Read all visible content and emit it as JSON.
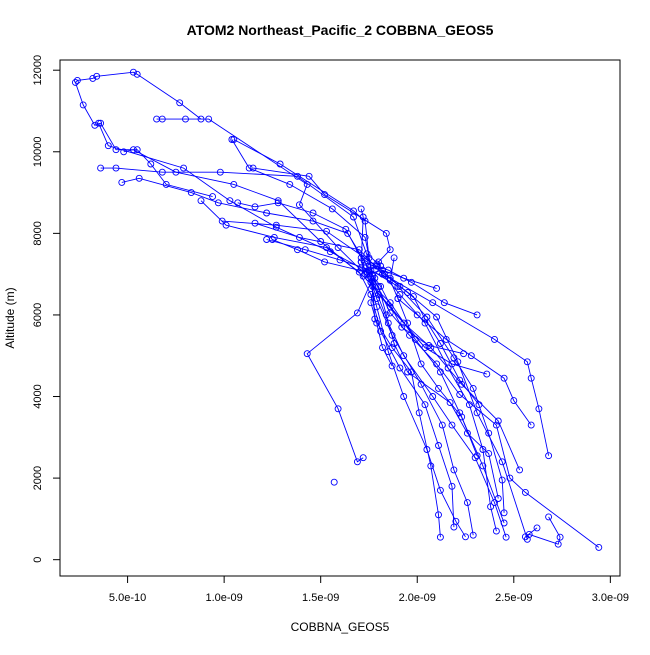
{
  "chart_data": {
    "type": "line",
    "title": "ATOM2 Northeast_Pacific_2 COBBNA_GEOS5",
    "xlabel": "COBBNA_GEOS5",
    "ylabel": "Altitude (m)",
    "xlim": [
      1.5e-10,
      3.05e-09
    ],
    "ylim": [
      -400,
      12250
    ],
    "xticks": [
      5e-10,
      1e-09,
      1.5e-09,
      2e-09,
      2.5e-09,
      3e-09
    ],
    "xtick_labels": [
      "5.0e-10",
      "1.0e-09",
      "1.5e-09",
      "2.0e-09",
      "2.5e-09",
      "3.0e-09"
    ],
    "yticks": [
      0,
      2000,
      4000,
      6000,
      8000,
      10000,
      12000
    ],
    "ytick_labels": [
      "0",
      "2000",
      "4000",
      "6000",
      "8000",
      "10000",
      "12000"
    ],
    "grid": false,
    "color": "#0000ff",
    "marker": "open-circle",
    "series": [
      {
        "points": [
          [
            2.68e-09,
            1050
          ],
          [
            2.74e-09,
            550
          ],
          [
            2.73e-09,
            380
          ],
          [
            2.58e-09,
            620
          ],
          [
            2.56e-09,
            560
          ],
          [
            2.62e-09,
            780
          ]
        ]
      },
      {
        "points": [
          [
            2.94e-09,
            300
          ],
          [
            2.56e-09,
            1650
          ],
          [
            2.48e-09,
            2000
          ],
          [
            2.41e-09,
            3300
          ],
          [
            2.22e-09,
            4050
          ],
          [
            2.1e-09,
            4800
          ],
          [
            1.96e-09,
            5500
          ],
          [
            1.86e-09,
            6050
          ],
          [
            1.77e-09,
            6950
          ],
          [
            1.73e-09,
            7900
          ],
          [
            1.56e-09,
            8600
          ],
          [
            1.34e-09,
            9200
          ],
          [
            1.13e-09,
            9600
          ],
          [
            1.04e-09,
            10300
          ]
        ]
      },
      {
        "points": [
          [
            2.68e-09,
            2550
          ],
          [
            2.63e-09,
            3700
          ],
          [
            2.59e-09,
            4450
          ],
          [
            2.57e-09,
            4850
          ],
          [
            2.4e-09,
            5400
          ],
          [
            2.08e-09,
            6300
          ],
          [
            1.86e-09,
            6900
          ],
          [
            1.71e-09,
            7150
          ],
          [
            1.55e-09,
            7550
          ],
          [
            1.27e-09,
            8150
          ],
          [
            1.03e-09,
            8800
          ],
          [
            7.9e-10,
            9600
          ],
          [
            4e-10,
            10150
          ],
          [
            3.5e-10,
            10700
          ]
        ]
      },
      {
        "points": [
          [
            2.53e-09,
            2200
          ],
          [
            2.42e-09,
            3400
          ],
          [
            2.23e-09,
            4300
          ],
          [
            2.07e-09,
            5200
          ],
          [
            1.93e-09,
            5800
          ],
          [
            1.8e-09,
            6500
          ],
          [
            1.73e-09,
            7000
          ],
          [
            1.59e-09,
            7650
          ],
          [
            1.39e-09,
            8700
          ],
          [
            1.43e-09,
            9200
          ],
          [
            9.2e-10,
            10800
          ],
          [
            8e-10,
            10800
          ],
          [
            6.8e-10,
            10800
          ],
          [
            6.5e-10,
            10800
          ]
        ]
      },
      {
        "points": [
          [
            2.45e-09,
            900
          ],
          [
            2.34e-09,
            2300
          ],
          [
            2.22e-09,
            3600
          ],
          [
            2.12e-09,
            4600
          ],
          [
            1.99e-09,
            5400
          ],
          [
            1.86e-09,
            6300
          ],
          [
            1.72e-09,
            6950
          ],
          [
            1.5e-09,
            7800
          ],
          [
            1.28e-09,
            8800
          ],
          [
            1.05e-09,
            9200
          ],
          [
            7.5e-10,
            9500
          ],
          [
            5.3e-10,
            10050
          ],
          [
            4.8e-10,
            10000
          ]
        ]
      },
      {
        "points": [
          [
            2.12e-09,
            550
          ],
          [
            2.11e-09,
            1100
          ],
          [
            2.07e-09,
            2300
          ],
          [
            2.01e-09,
            3600
          ],
          [
            1.97e-09,
            4600
          ],
          [
            1.87e-09,
            5200
          ],
          [
            1.78e-09,
            5900
          ],
          [
            1.76e-09,
            7200
          ],
          [
            1.67e-09,
            8400
          ],
          [
            1.38e-09,
            9400
          ],
          [
            9.8e-10,
            9500
          ],
          [
            6.8e-10,
            9500
          ],
          [
            4.4e-10,
            9600
          ],
          [
            3.6e-10,
            9600
          ]
        ]
      },
      {
        "points": [
          [
            2.29e-09,
            600
          ],
          [
            2.26e-09,
            1400
          ],
          [
            2.19e-09,
            2200
          ],
          [
            2.13e-09,
            3300
          ],
          [
            2.02e-09,
            4300
          ],
          [
            1.87e-09,
            5500
          ],
          [
            1.79e-09,
            6400
          ],
          [
            1.73e-09,
            7300
          ],
          [
            1.64e-09,
            8000
          ],
          [
            1.46e-09,
            8300
          ],
          [
            1.22e-09,
            8500
          ],
          [
            9.7e-10,
            8750
          ],
          [
            8.3e-10,
            9000
          ],
          [
            5.6e-10,
            9350
          ],
          [
            4.7e-10,
            9250
          ]
        ]
      },
      {
        "points": [
          [
            2.19e-09,
            800
          ],
          [
            2.18e-09,
            1800
          ],
          [
            2.11e-09,
            2800
          ],
          [
            2.04e-09,
            3800
          ],
          [
            1.91e-09,
            4700
          ],
          [
            1.81e-09,
            5600
          ],
          [
            1.76e-09,
            6500
          ],
          [
            1.7e-09,
            7050
          ],
          [
            1.53e-09,
            7650
          ],
          [
            1.26e-09,
            7900
          ],
          [
            1.01e-09,
            8200
          ],
          [
            8.8e-10,
            8800
          ]
        ]
      },
      {
        "points": [
          [
            2.41e-09,
            700
          ],
          [
            2.38e-09,
            1300
          ],
          [
            2.34e-09,
            2700
          ],
          [
            2.27e-09,
            3800
          ],
          [
            2.16e-09,
            4700
          ],
          [
            2.04e-09,
            5800
          ],
          [
            1.91e-09,
            6500
          ],
          [
            1.82e-09,
            7000
          ],
          [
            1.7e-09,
            7600
          ],
          [
            1.39e-09,
            7900
          ],
          [
            1.16e-09,
            8250
          ]
        ]
      },
      {
        "points": [
          [
            2.45e-09,
            1150
          ],
          [
            2.44e-09,
            1950
          ],
          [
            2.37e-09,
            3100
          ],
          [
            2.29e-09,
            4200
          ],
          [
            2.19e-09,
            4950
          ],
          [
            2.05e-09,
            5950
          ],
          [
            1.9e-09,
            6700
          ],
          [
            1.76e-09,
            7100
          ],
          [
            1.6e-09,
            7350
          ],
          [
            1.42e-09,
            7600
          ],
          [
            1.22e-09,
            7850
          ]
        ]
      },
      {
        "points": [
          [
            2.57e-09,
            500
          ],
          [
            2.44e-09,
            2400
          ],
          [
            2.31e-09,
            3600
          ],
          [
            2.21e-09,
            4850
          ],
          [
            2.1e-09,
            5950
          ],
          [
            1.95e-09,
            6550
          ],
          [
            1.83e-09,
            7000
          ],
          [
            1.71e-09,
            7400
          ],
          [
            1.63e-09,
            8100
          ],
          [
            1.46e-09,
            8500
          ],
          [
            1.28e-09,
            8750
          ],
          [
            1.16e-09,
            8650
          ],
          [
            1.07e-09,
            8750
          ]
        ]
      },
      {
        "points": [
          [
            2.46e-09,
            550
          ],
          [
            2.4e-09,
            1400
          ],
          [
            2.3e-09,
            2500
          ],
          [
            2.18e-09,
            3300
          ],
          [
            2.08e-09,
            4000
          ],
          [
            1.93e-09,
            5000
          ],
          [
            1.85e-09,
            5800
          ],
          [
            1.77e-09,
            6800
          ],
          [
            1.75e-09,
            7400
          ],
          [
            1.73e-09,
            8300
          ],
          [
            1.67e-09,
            8550
          ],
          [
            1.29e-09,
            9700
          ],
          [
            1.05e-09,
            10300
          ]
        ]
      },
      {
        "points": [
          [
            2.42e-09,
            1500
          ],
          [
            2.37e-09,
            2600
          ],
          [
            2.26e-09,
            3100
          ],
          [
            2.17e-09,
            3850
          ],
          [
            1.95e-09,
            4600
          ],
          [
            1.88e-09,
            5300
          ],
          [
            1.84e-09,
            6000
          ],
          [
            1.8e-09,
            6700
          ],
          [
            1.74e-09,
            7050
          ],
          [
            1.52e-09,
            7300
          ],
          [
            1.38e-09,
            7600
          ],
          [
            1.25e-09,
            7850
          ]
        ]
      },
      {
        "points": [
          [
            2.32e-09,
            3800
          ],
          [
            2.22e-09,
            4400
          ],
          [
            2.12e-09,
            5300
          ],
          [
            2.04e-09,
            5900
          ],
          [
            1.98e-09,
            6450
          ],
          [
            1.91e-09,
            6700
          ],
          [
            1.79e-09,
            7200
          ],
          [
            1.53e-09,
            8050
          ],
          [
            1.27e-09,
            8200
          ],
          [
            9.9e-10,
            8300
          ]
        ]
      },
      {
        "points": [
          [
            1.72e-09,
            2500
          ],
          [
            1.69e-09,
            2400
          ],
          [
            1.59e-09,
            3700
          ],
          [
            1.43e-09,
            5050
          ],
          [
            1.69e-09,
            6050
          ],
          [
            1.76e-09,
            6800
          ],
          [
            1.81e-09,
            7200
          ],
          [
            1.74e-09,
            7500
          ]
        ]
      },
      {
        "points": [
          [
            1.57e-09,
            1900
          ]
        ]
      },
      {
        "points": [
          [
            1.15e-09,
            9600
          ],
          [
            1.44e-09,
            9400
          ],
          [
            1.52e-09,
            8950
          ],
          [
            1.84e-09,
            8000
          ],
          [
            1.86e-09,
            7600
          ],
          [
            1.8e-09,
            7300
          ],
          [
            1.79e-09,
            7250
          ]
        ]
      },
      {
        "points": [
          [
            2.59e-09,
            3300
          ],
          [
            2.5e-09,
            3900
          ],
          [
            2.45e-09,
            4450
          ],
          [
            2.28e-09,
            5000
          ],
          [
            2.15e-09,
            5400
          ],
          [
            2e-09,
            6000
          ],
          [
            1.9e-09,
            6400
          ],
          [
            1.86e-09,
            6850
          ],
          [
            1.88e-09,
            7400
          ]
        ]
      },
      {
        "points": [
          [
            2.25e-09,
            560
          ],
          [
            2.2e-09,
            940
          ],
          [
            2.12e-09,
            1700
          ],
          [
            2.05e-09,
            2700
          ],
          [
            1.93e-09,
            4000
          ],
          [
            1.85e-09,
            5100
          ],
          [
            1.79e-09,
            6200
          ],
          [
            1.75e-09,
            6900
          ],
          [
            1.71e-09,
            7300
          ],
          [
            1.72e-09,
            8400
          ],
          [
            1.71e-09,
            8600
          ]
        ]
      },
      {
        "points": [
          [
            2.31e-09,
            6000
          ],
          [
            2.14e-09,
            6300
          ],
          [
            1.97e-09,
            6800
          ],
          [
            1.85e-09,
            7100
          ],
          [
            1.71e-09,
            7300
          ]
        ]
      },
      {
        "points": [
          [
            2.24e-09,
            5050
          ],
          [
            2.06e-09,
            5250
          ],
          [
            1.92e-09,
            5700
          ],
          [
            1.81e-09,
            6700
          ],
          [
            1.75e-09,
            7100
          ]
        ]
      },
      {
        "points": [
          [
            2.36e-09,
            4550
          ],
          [
            2.18e-09,
            4800
          ],
          [
            2.04e-09,
            5200
          ],
          [
            1.86e-09,
            6200
          ],
          [
            1.77e-09,
            6700
          ]
        ]
      },
      {
        "points": [
          [
            2.31e-09,
            2550
          ],
          [
            2.23e-09,
            3500
          ],
          [
            2.11e-09,
            4200
          ],
          [
            2.02e-09,
            4800
          ],
          [
            1.95e-09,
            5800
          ],
          [
            1.9e-09,
            6400
          ]
        ]
      },
      {
        "points": [
          [
            2.1e-09,
            6650
          ],
          [
            1.93e-09,
            6900
          ],
          [
            1.82e-09,
            7100
          ],
          [
            1.74e-09,
            7000
          ],
          [
            1.73e-09,
            7150
          ]
        ]
      },
      {
        "points": [
          [
            1.87e-09,
            4750
          ],
          [
            1.82e-09,
            5200
          ],
          [
            1.79e-09,
            5800
          ],
          [
            1.76e-09,
            6300
          ],
          [
            1.78e-09,
            6900
          ]
        ]
      },
      {
        "points": [
          [
            9.4e-10,
            8900
          ],
          [
            7e-10,
            9200
          ],
          [
            6.2e-10,
            9700
          ],
          [
            5.5e-10,
            10050
          ],
          [
            4.4e-10,
            10050
          ],
          [
            3.6e-10,
            10700
          ],
          [
            3.3e-10,
            10650
          ],
          [
            2.7e-10,
            11150
          ],
          [
            2.3e-10,
            11700
          ],
          [
            2.4e-10,
            11750
          ],
          [
            3.2e-10,
            11800
          ],
          [
            3.4e-10,
            11850
          ],
          [
            5.3e-10,
            11950
          ],
          [
            5.5e-10,
            11900
          ],
          [
            7.7e-10,
            11200
          ],
          [
            8.8e-10,
            10800
          ]
        ]
      }
    ]
  }
}
